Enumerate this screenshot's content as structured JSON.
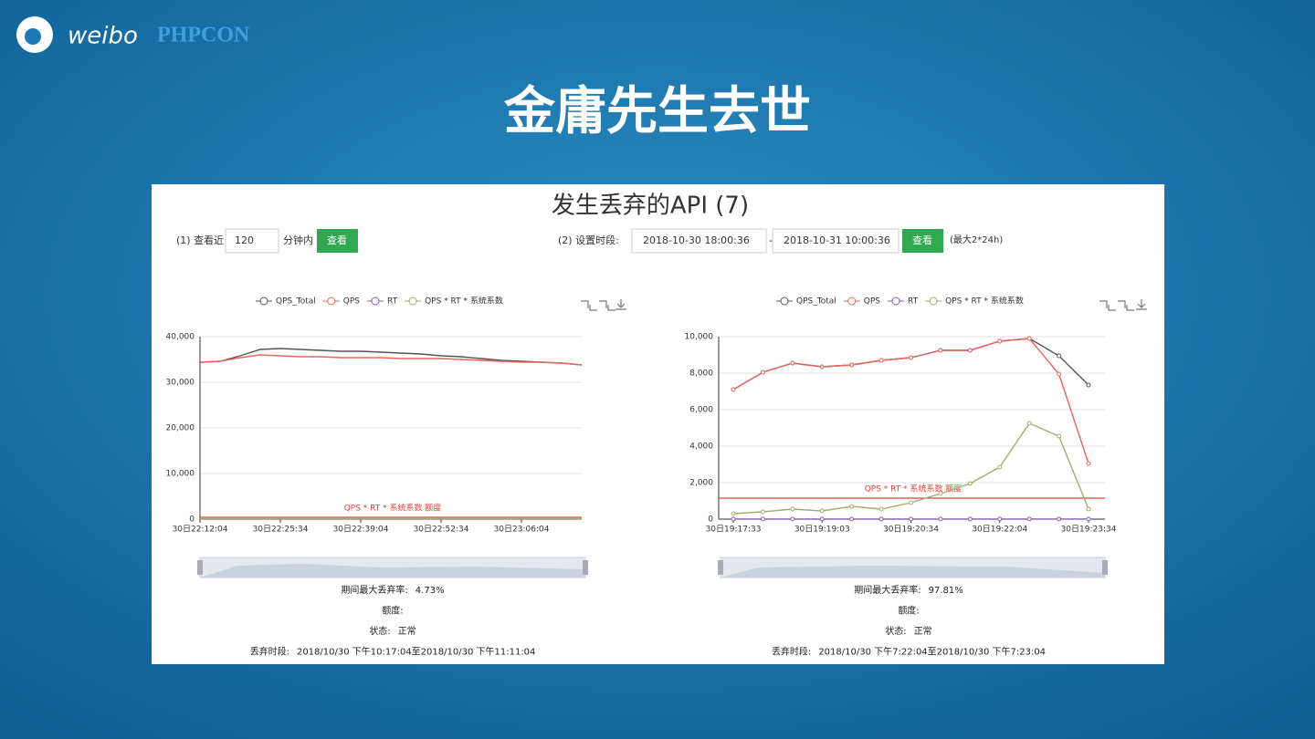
{
  "header": {
    "logo": "weibo",
    "brand": "PHPCON",
    "title": "金庸先生去世"
  },
  "panel": {
    "title": "发生丢弃的API (7)",
    "query1": {
      "label": "(1) 查看近",
      "input": "120",
      "unit": "分钟内",
      "button": "查看"
    },
    "query2": {
      "label": "(2) 设置时段:",
      "start": "2018-10-30 18:00:36",
      "sep": "-",
      "end": "2018-10-31 10:00:36",
      "button": "查看",
      "note": "(最大2*24h)"
    }
  },
  "chart_data": [
    {
      "type": "line",
      "legend": "top",
      "symbols": false,
      "categories": [
        "30日22:12:04",
        null,
        null,
        null,
        "30日22:25:34",
        null,
        null,
        null,
        "30日22:39:04",
        null,
        null,
        null,
        "30日22:52:34",
        null,
        null,
        null,
        "30日23:06:04",
        null,
        null,
        null
      ],
      "series": [
        {
          "name": "QPS_Total",
          "color": "#555555",
          "values": [
            34400,
            34600,
            35800,
            37200,
            37400,
            37200,
            37000,
            36800,
            36800,
            36600,
            36400,
            36200,
            35800,
            35600,
            35200,
            34800,
            34600,
            34400,
            34200,
            33800
          ]
        },
        {
          "name": "QPS",
          "color": "#e8655e",
          "values": [
            34400,
            34600,
            35400,
            36000,
            35800,
            35600,
            35600,
            35400,
            35400,
            35400,
            35200,
            35200,
            35200,
            35000,
            34800,
            34600,
            34400,
            34400,
            34200,
            33800
          ]
        },
        {
          "name": "RT",
          "color": "#8a5aa8",
          "values": [
            5,
            5,
            5,
            5,
            5,
            5,
            5,
            5,
            5,
            5,
            5,
            5,
            5,
            5,
            5,
            5,
            5,
            5,
            5,
            5
          ]
        },
        {
          "name": "QPS * RT * 系统系数",
          "color": "#a4ac6c",
          "values": [
            100,
            100,
            100,
            100,
            100,
            100,
            100,
            100,
            100,
            100,
            100,
            100,
            100,
            100,
            100,
            100,
            100,
            100,
            100,
            100
          ]
        }
      ],
      "threshold": 400,
      "threshold_color": "#e0463c",
      "annotation": "QPS * RT * 系统系数 额度",
      "ylim": [
        0,
        40000
      ],
      "yticks": [
        0,
        {
          "value": 10000,
          "label": "10,000"
        },
        {
          "value": 20000,
          "label": "20,000"
        },
        {
          "value": 30000,
          "label": "30,000"
        },
        {
          "value": 40000,
          "label": "40,000"
        }
      ],
      "grid": true,
      "stats": [
        {
          "label": "期间最大丢弃率:",
          "value": "4.73%"
        },
        {
          "label": "额度:"
        },
        {
          "label": "状态:",
          "value": "正常"
        },
        {
          "label": "丢弃时段:",
          "value": "2018/10/30 下午10:17:04至2018/10/30 下午11:11:04"
        }
      ]
    },
    {
      "type": "line",
      "legend": "top",
      "symbols": true,
      "categories": [
        "30日19:17:33",
        null,
        null,
        "30日19:19:03",
        null,
        null,
        "30日19:20:34",
        null,
        null,
        "30日19:22:04",
        null,
        null,
        "30日19:23:34"
      ],
      "series": [
        {
          "name": "QPS_Total",
          "color": "#555555",
          "values": [
            7100,
            8050,
            8550,
            8350,
            8450,
            8700,
            8850,
            9250,
            9250,
            9750,
            9900,
            8950,
            7350
          ]
        },
        {
          "name": "QPS",
          "color": "#e8655e",
          "values": [
            7100,
            8050,
            8550,
            8350,
            8450,
            8700,
            8850,
            9250,
            9250,
            9750,
            9900,
            7950,
            3050
          ]
        },
        {
          "name": "RT",
          "color": "#8a5aa8",
          "values": [
            5,
            5,
            5,
            5,
            5,
            5,
            5,
            5,
            5,
            5,
            5,
            5,
            5
          ]
        },
        {
          "name": "QPS * RT * 系统系数",
          "color": "#a4ac6c",
          "values": [
            300,
            400,
            550,
            450,
            700,
            550,
            900,
            1400,
            1950,
            2850,
            5250,
            4550,
            550
          ]
        }
      ],
      "threshold": 1150,
      "threshold_color": "#e0463c",
      "annotation": "QPS * RT * 系统系数 额度",
      "ylim": [
        0,
        10000
      ],
      "yticks": [
        0,
        {
          "value": 2000,
          "label": "2,000"
        },
        {
          "value": 4000,
          "label": "4,000"
        },
        {
          "value": 6000,
          "label": "6,000"
        },
        {
          "value": 8000,
          "label": "8,000"
        },
        {
          "value": 10000,
          "label": "10,000"
        }
      ],
      "grid": true,
      "stats": [
        {
          "label": "期间最大丢弃率:",
          "value": "97.81%"
        },
        {
          "label": "额度:"
        },
        {
          "label": "状态:",
          "value": "正常"
        },
        {
          "label": "丢弃时段:",
          "value": "2018/10/30 下午7:22:04至2018/10/30 下午7:23:04"
        }
      ]
    }
  ]
}
